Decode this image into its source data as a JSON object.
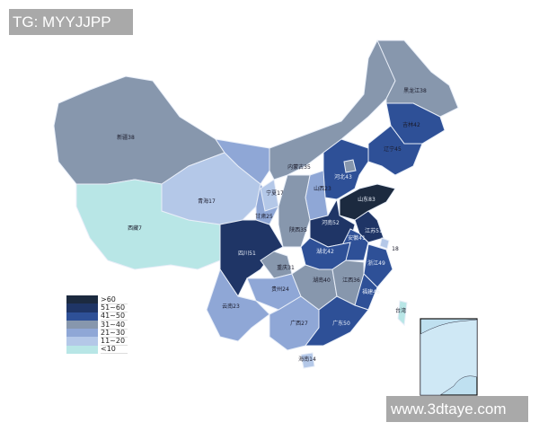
{
  "watermarks": {
    "top_left": "TG: MYYJJPP",
    "bottom_right": "www.3dtaye.com"
  },
  "legend": [
    {
      "label": ">60",
      "color": "#1c2a3f"
    },
    {
      "label": "51~60",
      "color": "#1f3566"
    },
    {
      "label": "41~50",
      "color": "#2e5097"
    },
    {
      "label": "31~40",
      "color": "#8797ad"
    },
    {
      "label": "21~30",
      "color": "#8fa7d6"
    },
    {
      "label": "11~20",
      "color": "#b4c8e8"
    },
    {
      "label": "<10",
      "color": "#b8e6e6"
    }
  ],
  "provinces": {
    "xinjiang": "新疆38",
    "xizang": "西藏7",
    "qinghai": "青海17",
    "gansu": "甘肃25",
    "ningxia": "宁夏17",
    "neimenggu": "内蒙古35",
    "heilongjiang": "黑龙江38",
    "jilin": "吉林42",
    "liaoning": "辽宁45",
    "hebei": "河北43",
    "shanxi": "山西23",
    "shaanxi": "陕西35",
    "shandong": "山东83",
    "henan": "河南52",
    "jiangsu": "江苏51",
    "anhui": "安徽41",
    "shanghai": "18",
    "zhejiang": "浙江49",
    "hubei": "湖北42",
    "sichuan": "四川51",
    "chongqing": "重庆31",
    "guizhou": "贵州24",
    "yunnan": "云南23",
    "guangxi": "广西27",
    "hunan": "湖南40",
    "jiangxi": "江西36",
    "fujian": "福建46",
    "guangdong": "广东50",
    "hainan": "海南14",
    "taiwan": "台湾"
  }
}
